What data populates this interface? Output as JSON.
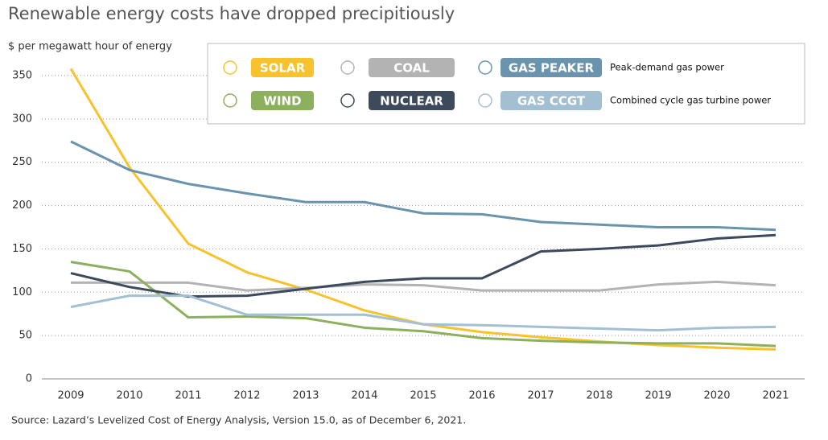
{
  "chart_data": {
    "type": "line",
    "title": "Renewable energy costs have dropped precipitiously",
    "y_label": "$ per megawatt hour of energy",
    "source": "Source: Lazard’s Levelized Cost of Energy Analysis, Version 15.0, as of December 6, 2021.",
    "categories": [
      "2009",
      "2010",
      "2011",
      "2012",
      "2013",
      "2014",
      "2015",
      "2016",
      "2017",
      "2018",
      "2019",
      "2020",
      "2021"
    ],
    "ylim": [
      0,
      370
    ],
    "yticks": [
      0,
      50,
      100,
      150,
      200,
      250,
      300,
      350
    ],
    "grid": true,
    "series": [
      {
        "name": "SOLAR",
        "color": "#f7c22b",
        "values": [
          358,
          244,
          156,
          123,
          103,
          79,
          63,
          54,
          48,
          43,
          39,
          36,
          34
        ]
      },
      {
        "name": "COAL",
        "color": "#b3b3b3",
        "values": [
          111,
          111,
          111,
          102,
          105,
          109,
          108,
          102,
          102,
          102,
          109,
          112,
          108
        ]
      },
      {
        "name": "GAS PEAKER",
        "description": "Peak-demand gas power",
        "color": "#6a93ad",
        "values": [
          274,
          241,
          225,
          214,
          204,
          204,
          191,
          190,
          181,
          178,
          175,
          175,
          172
        ]
      },
      {
        "name": "WIND",
        "color": "#8db05e",
        "values": [
          135,
          124,
          71,
          72,
          70,
          59,
          55,
          47,
          44,
          42,
          41,
          41,
          38
        ]
      },
      {
        "name": "NUCLEAR",
        "color": "#3d4a5c",
        "values": [
          122,
          106,
          95,
          96,
          104,
          112,
          116,
          116,
          147,
          150,
          154,
          162,
          166
        ]
      },
      {
        "name": "GAS CCGT",
        "description": "Combined cycle gas turbine power",
        "color": "#a3c0d3",
        "values": [
          83,
          96,
          96,
          74,
          74,
          74,
          63,
          62,
          60,
          58,
          56,
          59,
          60
        ]
      }
    ]
  }
}
